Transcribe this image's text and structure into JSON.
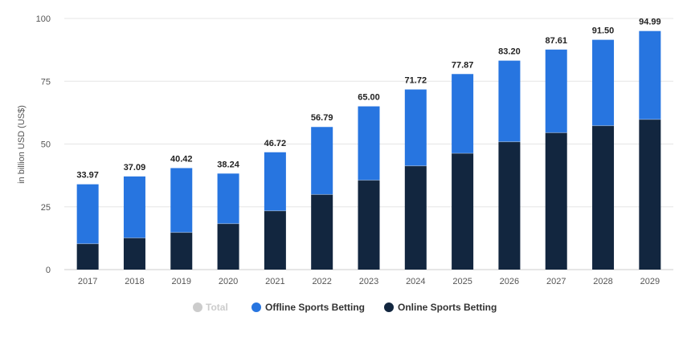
{
  "chart_data": {
    "type": "bar",
    "stacked": true,
    "categories": [
      "2017",
      "2018",
      "2019",
      "2020",
      "2021",
      "2022",
      "2023",
      "2024",
      "2025",
      "2026",
      "2027",
      "2028",
      "2029"
    ],
    "series": [
      {
        "name": "Online Sports Betting",
        "color": "#12263f",
        "values": [
          10.3,
          12.6,
          14.8,
          18.3,
          23.4,
          29.9,
          35.6,
          41.3,
          46.3,
          50.9,
          54.5,
          57.3,
          59.8
        ]
      },
      {
        "name": "Offline Sports Betting",
        "color": "#2775e0",
        "values": [
          23.67,
          24.49,
          25.62,
          19.94,
          23.32,
          26.89,
          29.4,
          30.42,
          31.57,
          32.3,
          33.11,
          34.2,
          35.19
        ]
      }
    ],
    "totals": [
      "33.97",
      "37.09",
      "40.42",
      "38.24",
      "46.72",
      "56.79",
      "65.00",
      "71.72",
      "77.87",
      "83.20",
      "87.61",
      "91.50",
      "94.99"
    ],
    "ylabel": "in billion USD (US$)",
    "ylim": [
      0,
      100
    ],
    "yticks": [
      0,
      25,
      50,
      75,
      100
    ],
    "grid": true,
    "legend_position": "bottom-center",
    "legend": [
      {
        "label": "Total",
        "color": "#cccccc",
        "text_color": "#cccccc"
      },
      {
        "label": "Offline Sports Betting",
        "color": "#2775e0",
        "text_color": "#333333"
      },
      {
        "label": "Online Sports Betting",
        "color": "#12263f",
        "text_color": "#333333"
      }
    ]
  }
}
